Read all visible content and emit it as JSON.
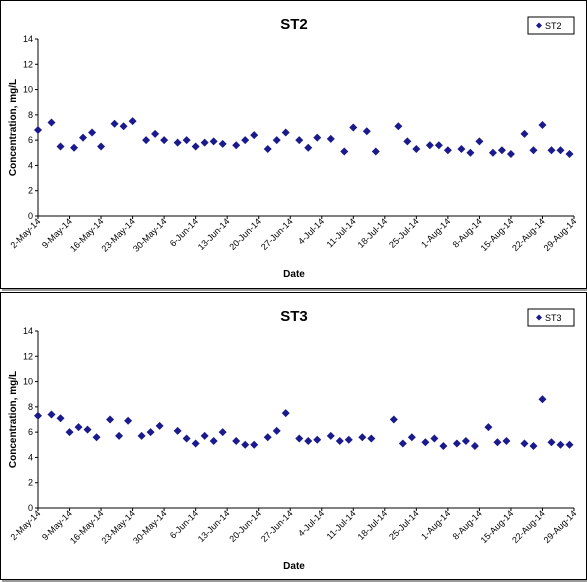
{
  "chart_data": [
    {
      "type": "scatter",
      "title": "ST2",
      "xlabel": "Date",
      "ylabel": "Concentration, mg/L",
      "ylim": [
        0,
        14
      ],
      "yticks": [
        "0",
        "2",
        "4",
        "6",
        "8",
        "10",
        "12",
        "14"
      ],
      "xlim": [
        "2014-05-02",
        "2014-08-29"
      ],
      "xticks": [
        "2-May-14",
        "9-May-14",
        "16-May-14",
        "23-May-14",
        "30-May-14",
        "6-Jun-14",
        "13-Jun-14",
        "20-Jun-14",
        "27-Jun-14",
        "4-Jul-14",
        "11-Jul-14",
        "18-Jul-14",
        "25-Jul-14",
        "1-Aug-14",
        "8-Aug-14",
        "15-Aug-14",
        "22-Aug-14",
        "29-Aug-14"
      ],
      "grid": false,
      "legend": "top-right",
      "color": "#1a1a8c",
      "series": [
        {
          "name": "ST2",
          "x": [
            "2014-05-02",
            "2014-05-05",
            "2014-05-07",
            "2014-05-10",
            "2014-05-12",
            "2014-05-14",
            "2014-05-16",
            "2014-05-19",
            "2014-05-21",
            "2014-05-23",
            "2014-05-26",
            "2014-05-28",
            "2014-05-30",
            "2014-06-02",
            "2014-06-04",
            "2014-06-06",
            "2014-06-08",
            "2014-06-10",
            "2014-06-12",
            "2014-06-15",
            "2014-06-17",
            "2014-06-19",
            "2014-06-22",
            "2014-06-24",
            "2014-06-26",
            "2014-06-29",
            "2014-07-01",
            "2014-07-03",
            "2014-07-06",
            "2014-07-09",
            "2014-07-11",
            "2014-07-14",
            "2014-07-16",
            "2014-07-21",
            "2014-07-23",
            "2014-07-25",
            "2014-07-28",
            "2014-07-30",
            "2014-08-01",
            "2014-08-04",
            "2014-08-06",
            "2014-08-08",
            "2014-08-11",
            "2014-08-13",
            "2014-08-15",
            "2014-08-18",
            "2014-08-20",
            "2014-08-22",
            "2014-08-24",
            "2014-08-26",
            "2014-08-28"
          ],
          "y": [
            6.8,
            7.4,
            5.5,
            5.4,
            6.2,
            6.6,
            5.5,
            7.3,
            7.1,
            7.5,
            6.0,
            6.5,
            6.0,
            5.8,
            6.0,
            5.5,
            5.8,
            5.9,
            5.7,
            5.6,
            6.0,
            6.4,
            5.3,
            6.0,
            6.6,
            6.0,
            5.4,
            6.2,
            6.1,
            5.1,
            7.0,
            6.7,
            5.1,
            7.1,
            5.9,
            5.3,
            5.6,
            5.6,
            5.2,
            5.3,
            5.0,
            5.9,
            5.0,
            5.2,
            4.9,
            6.5,
            5.2,
            7.2,
            5.2,
            5.2,
            4.9
          ]
        }
      ]
    },
    {
      "type": "scatter",
      "title": "ST3",
      "xlabel": "Date",
      "ylabel": "Concentration, mg/L",
      "ylim": [
        0,
        14
      ],
      "yticks": [
        "0",
        "2",
        "4",
        "6",
        "8",
        "10",
        "12",
        "14"
      ],
      "xlim": [
        "2014-05-02",
        "2014-08-29"
      ],
      "xticks": [
        "2-May-14",
        "9-May-14",
        "16-May-14",
        "23-May-14",
        "30-May-14",
        "6-Jun-14",
        "13-Jun-14",
        "20-Jun-14",
        "27-Jun-14",
        "4-Jul-14",
        "11-Jul-14",
        "18-Jul-14",
        "25-Jul-14",
        "1-Aug-14",
        "8-Aug-14",
        "15-Aug-14",
        "22-Aug-14",
        "29-Aug-14"
      ],
      "grid": false,
      "legend": "top-right",
      "color": "#1a1a8c",
      "series": [
        {
          "name": "ST3",
          "x": [
            "2014-05-02",
            "2014-05-05",
            "2014-05-07",
            "2014-05-09",
            "2014-05-11",
            "2014-05-13",
            "2014-05-15",
            "2014-05-18",
            "2014-05-20",
            "2014-05-22",
            "2014-05-25",
            "2014-05-27",
            "2014-05-29",
            "2014-06-02",
            "2014-06-04",
            "2014-06-06",
            "2014-06-08",
            "2014-06-10",
            "2014-06-12",
            "2014-06-15",
            "2014-06-17",
            "2014-06-19",
            "2014-06-22",
            "2014-06-24",
            "2014-06-26",
            "2014-06-29",
            "2014-07-01",
            "2014-07-03",
            "2014-07-06",
            "2014-07-08",
            "2014-07-10",
            "2014-07-13",
            "2014-07-15",
            "2014-07-20",
            "2014-07-22",
            "2014-07-24",
            "2014-07-27",
            "2014-07-29",
            "2014-07-31",
            "2014-08-03",
            "2014-08-05",
            "2014-08-07",
            "2014-08-10",
            "2014-08-12",
            "2014-08-14",
            "2014-08-18",
            "2014-08-20",
            "2014-08-22",
            "2014-08-24",
            "2014-08-26",
            "2014-08-28"
          ],
          "y": [
            7.3,
            7.4,
            7.1,
            6.0,
            6.4,
            6.2,
            5.6,
            7.0,
            5.7,
            6.9,
            5.7,
            6.0,
            6.5,
            6.1,
            5.5,
            5.1,
            5.7,
            5.3,
            6.0,
            5.3,
            5.0,
            5.0,
            5.6,
            6.1,
            7.5,
            5.5,
            5.3,
            5.4,
            5.7,
            5.3,
            5.4,
            5.6,
            5.5,
            7.0,
            5.1,
            5.6,
            5.2,
            5.5,
            4.9,
            5.1,
            5.3,
            4.9,
            6.4,
            5.2,
            5.3,
            5.1,
            4.9,
            8.6,
            5.2,
            5.0,
            5.0
          ]
        }
      ]
    }
  ]
}
